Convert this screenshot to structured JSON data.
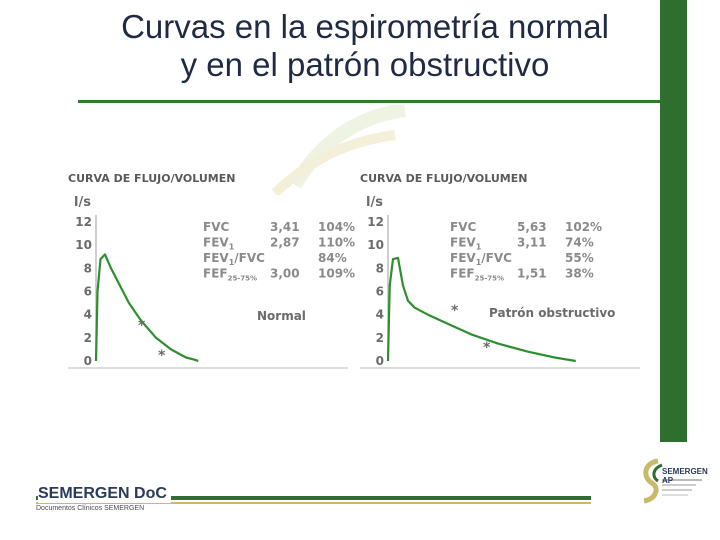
{
  "header": {
    "title_line1": "Curvas en la espirometría normal",
    "title_line2": "y en el patrón obstructivo"
  },
  "colors": {
    "accent": "#2e6e2e",
    "curve": "#2f8f2f",
    "gold": "#c9b96b"
  },
  "chart_data": [
    {
      "type": "line",
      "panel_title": "CURVA DE FLUJO/VOLUMEN",
      "ylabel": "l/s",
      "y_ticks": [
        "12",
        "10",
        "8",
        "6",
        "4",
        "2",
        "0"
      ],
      "ylim": [
        0,
        12
      ],
      "series": [
        {
          "x": [
            0,
            0.05,
            0.15,
            0.3,
            0.5,
            0.8,
            1.1,
            1.5,
            2.0,
            2.5,
            3.0,
            3.3,
            3.41
          ],
          "values": [
            0,
            6.0,
            8.8,
            9.2,
            8.0,
            6.5,
            5.0,
            3.5,
            2.0,
            1.0,
            0.3,
            0.1,
            0
          ]
        }
      ],
      "xlim": [
        0,
        4.0
      ],
      "stats": [
        {
          "label": "FVC",
          "sub": "",
          "v1": "3,41",
          "v2": "104%"
        },
        {
          "label": "FEV",
          "sub": "1",
          "v1": "2,87",
          "v2": "110%"
        },
        {
          "label": "FEV",
          "sub": "1",
          "suffix": "/FVC",
          "v1": "",
          "v2": "84%"
        },
        {
          "label": "FEF",
          "sub": "25-75%",
          "v1": "3,00",
          "v2": "109%"
        }
      ],
      "annotation": "Normal",
      "markers": [
        "*",
        "*"
      ]
    },
    {
      "type": "line",
      "panel_title": "CURVA DE FLUJO/VOLUMEN",
      "ylabel": "l/s",
      "y_ticks": [
        "12",
        "10",
        "8",
        "6",
        "4",
        "2",
        "0"
      ],
      "ylim": [
        0,
        12
      ],
      "series": [
        {
          "x": [
            0,
            0.05,
            0.15,
            0.3,
            0.45,
            0.6,
            0.8,
            1.2,
            1.8,
            2.5,
            3.3,
            4.2,
            5.0,
            5.63
          ],
          "values": [
            0,
            6.5,
            8.8,
            8.9,
            6.5,
            5.2,
            4.6,
            4.0,
            3.2,
            2.3,
            1.5,
            0.8,
            0.3,
            0
          ]
        }
      ],
      "xlim": [
        0,
        6.0
      ],
      "stats": [
        {
          "label": "FVC",
          "sub": "",
          "v1": "5,63",
          "v2": "102%"
        },
        {
          "label": "FEV",
          "sub": "1",
          "v1": "3,11",
          "v2": "74%"
        },
        {
          "label": "FEV",
          "sub": "1",
          "suffix": "/FVC",
          "v1": "",
          "v2": "55%"
        },
        {
          "label": "FEF",
          "sub": "25-75%",
          "v1": "1,51",
          "v2": "38%"
        }
      ],
      "annotation": "Patrón obstructivo",
      "markers": [
        "*",
        "*"
      ]
    }
  ],
  "footer": {
    "brand": "SEMERGEN DoC",
    "brand_sub": "Documentos Clínicos SEMERGEN",
    "logo_text": "SEMERGEN AP"
  }
}
